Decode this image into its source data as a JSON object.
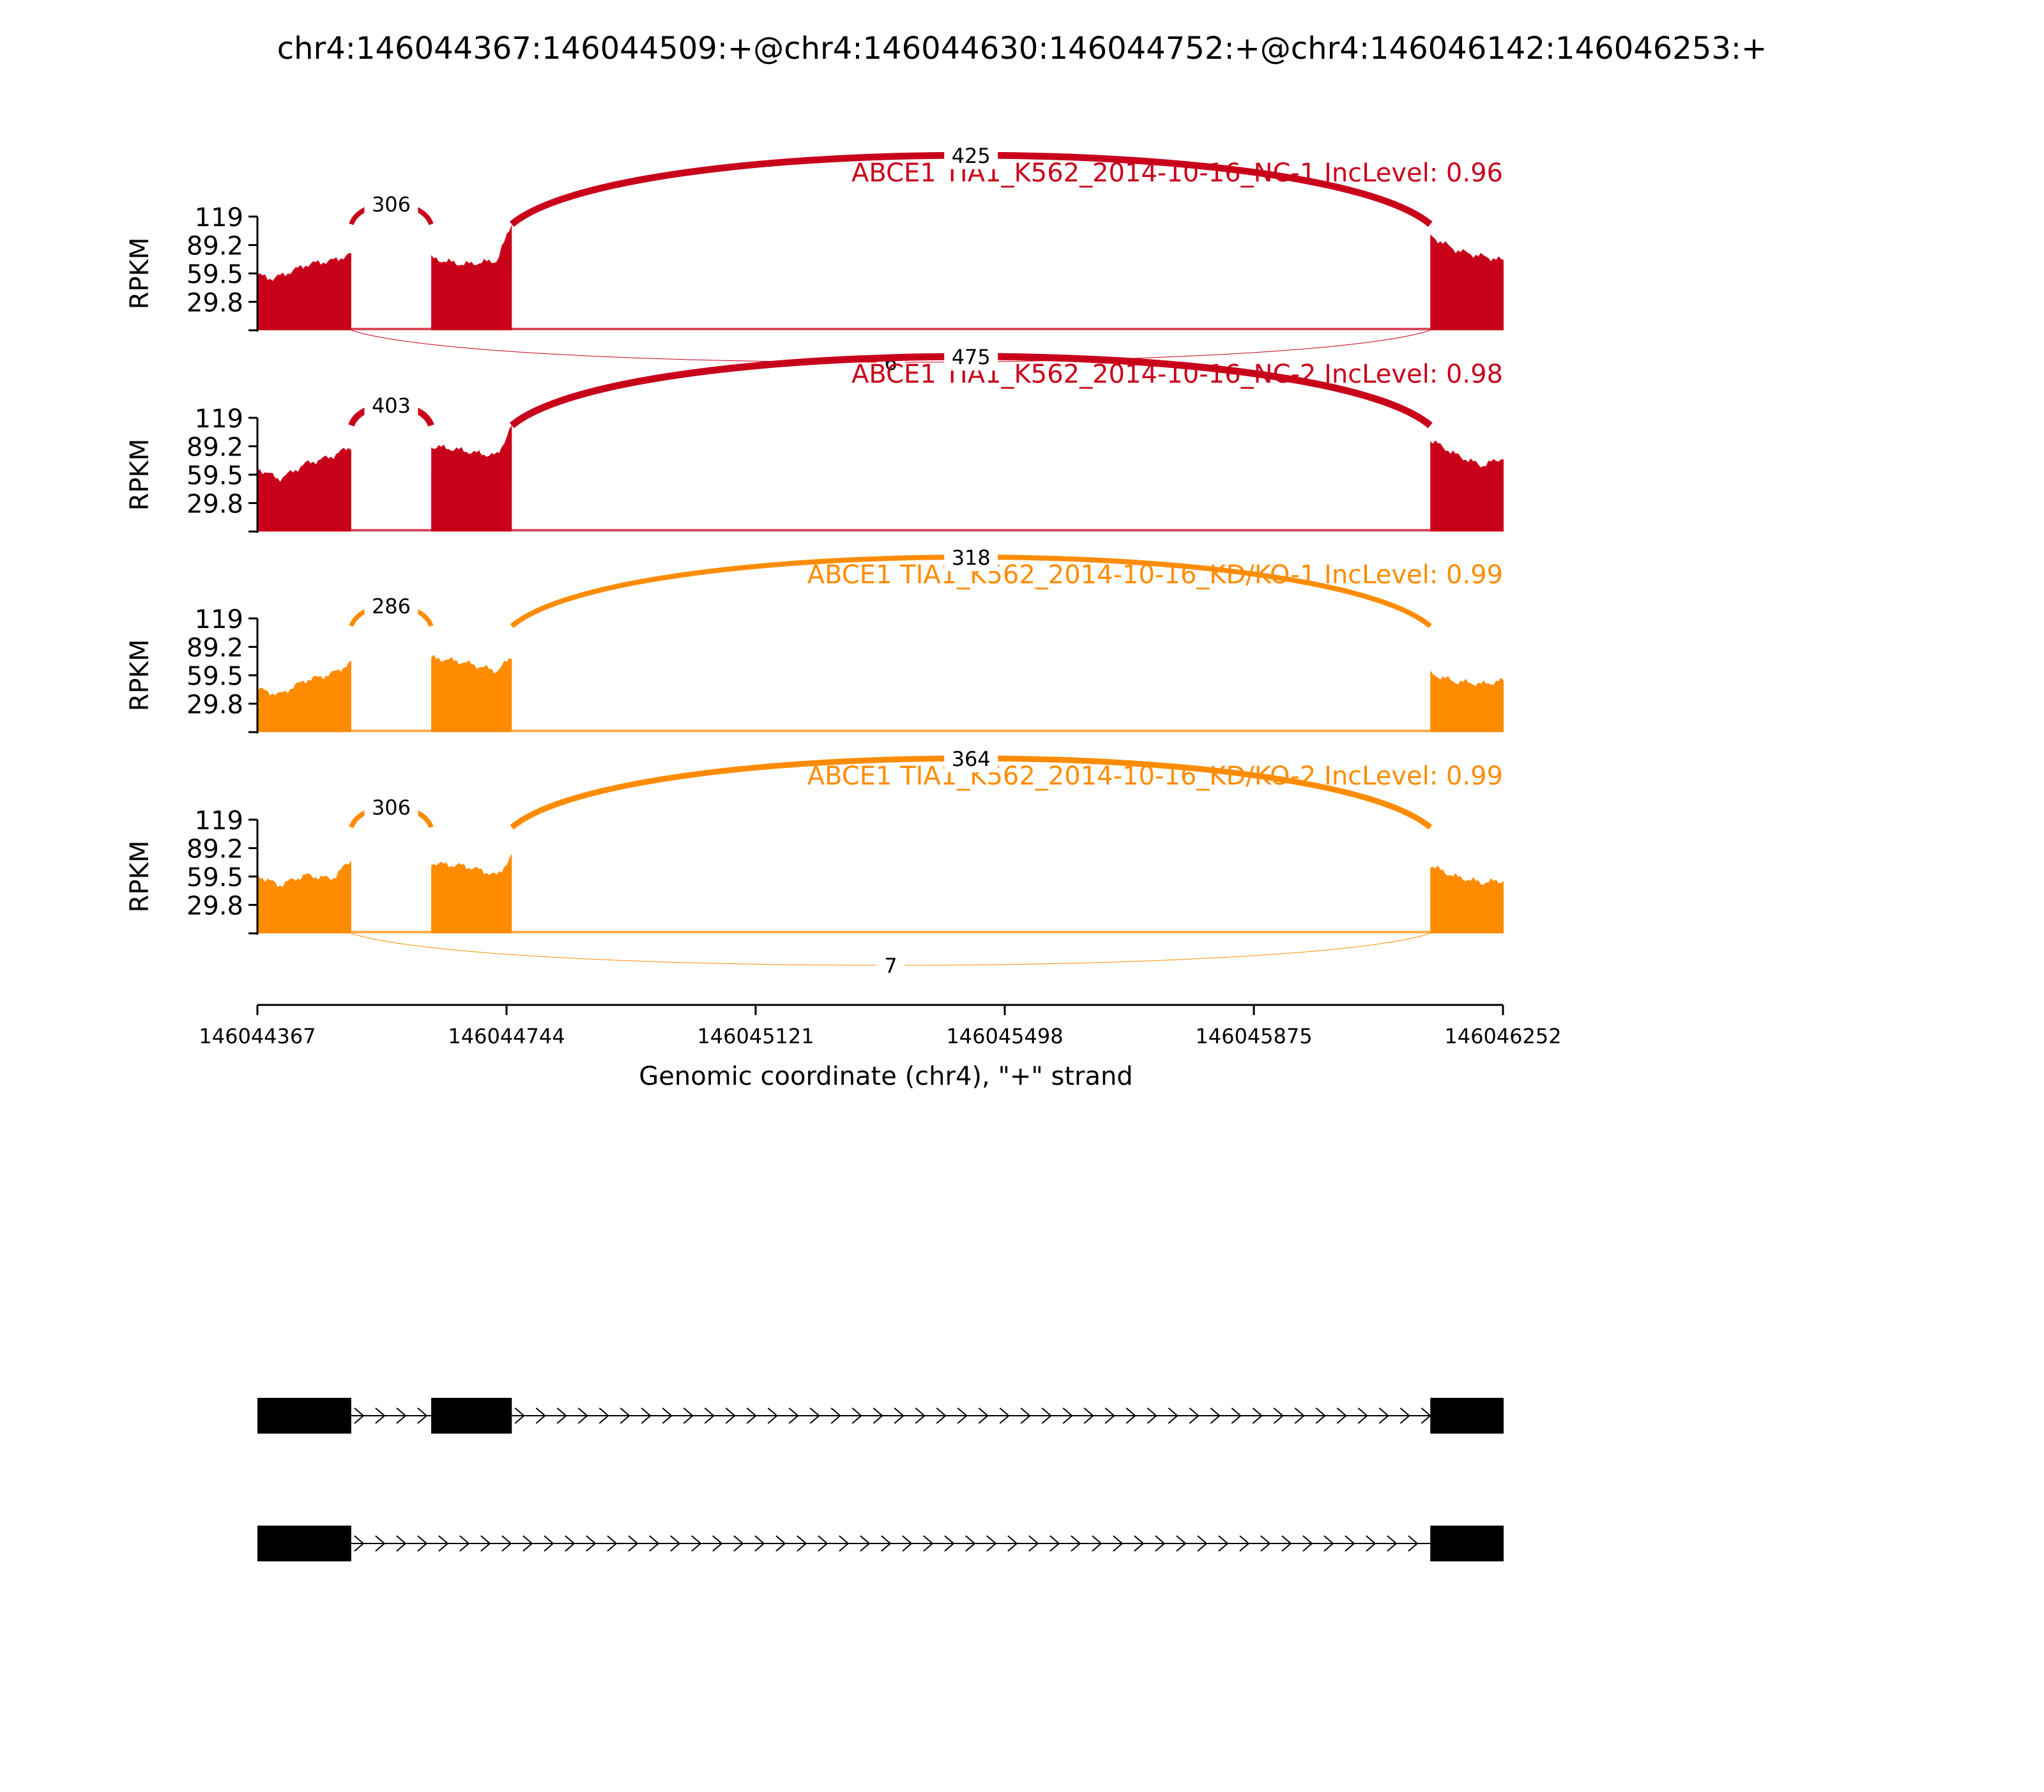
{
  "chart_data": {
    "type": "area",
    "title": "chr4:146044367:146044509:+@chr4:146044630:146044752:+@chr4:146046142:146046253:+",
    "ylabel": "RPKM",
    "xlabel": "Genomic coordinate (chr4), \"+\" strand",
    "xlim": [
      146044367,
      146046252
    ],
    "xticks": [
      146044367,
      146044744,
      146045121,
      146045498,
      146045875,
      146046252
    ],
    "xtick_labels": [
      "146044367",
      "146044744",
      "146045121",
      "146045498",
      "146045875",
      "146046252"
    ],
    "ylim": [
      0,
      119
    ],
    "yticks": [
      29.8,
      59.5,
      89.2,
      119
    ],
    "ytick_labels": [
      "29.8",
      "59.5",
      "89.2",
      "119"
    ],
    "exons": [
      {
        "start": 146044367,
        "end": 146044509
      },
      {
        "start": 146044630,
        "end": 146044752
      },
      {
        "start": 146046142,
        "end": 146046253
      }
    ],
    "colors": {
      "NC": "#c8001a",
      "KD": "#ff8c00"
    },
    "samples": [
      {
        "label": "ABCE1 TIA1_K562_2014-10-16_NC-1 IncLevel: 0.96",
        "color": "#c8001a",
        "exon_coverage": [
          [
            [
              146044367,
              58
            ],
            [
              146044390,
              55
            ],
            [
              146044440,
              68
            ],
            [
              146044480,
              72
            ],
            [
              146044509,
              80
            ]
          ],
          [
            [
              146044630,
              75
            ],
            [
              146044680,
              70
            ],
            [
              146044730,
              72
            ],
            [
              146044752,
              112
            ]
          ],
          [
            [
              146046142,
              98
            ],
            [
              146046180,
              85
            ],
            [
              146046220,
              78
            ],
            [
              146046253,
              72
            ]
          ]
        ],
        "junctions": [
          {
            "from": 146044509,
            "to": 146044630,
            "count": "306",
            "side": "above"
          },
          {
            "from": 146044752,
            "to": 146046142,
            "count": "425",
            "side": "above"
          },
          {
            "from": 146044509,
            "to": 146046142,
            "count": "6",
            "side": "below"
          }
        ]
      },
      {
        "label": "ABCE1 TIA1_K562_2014-10-16_NC-2 IncLevel: 0.98",
        "color": "#c8001a",
        "exon_coverage": [
          [
            [
              146044367,
              65
            ],
            [
              146044400,
              55
            ],
            [
              146044440,
              72
            ],
            [
              146044480,
              78
            ],
            [
              146044509,
              88
            ]
          ],
          [
            [
              146044630,
              88
            ],
            [
              146044680,
              85
            ],
            [
              146044730,
              80
            ],
            [
              146044752,
              110
            ]
          ],
          [
            [
              146046142,
              95
            ],
            [
              146046180,
              80
            ],
            [
              146046220,
              70
            ],
            [
              146046253,
              78
            ]
          ]
        ],
        "junctions": [
          {
            "from": 146044509,
            "to": 146044630,
            "count": "403",
            "side": "above"
          },
          {
            "from": 146044752,
            "to": 146046142,
            "count": "475",
            "side": "above"
          }
        ]
      },
      {
        "label": "ABCE1 TIA1_K562_2014-10-16_KD/KO-1 IncLevel: 0.99",
        "color": "#ff8c00",
        "exon_coverage": [
          [
            [
              146044367,
              45
            ],
            [
              146044400,
              38
            ],
            [
              146044440,
              55
            ],
            [
              146044480,
              62
            ],
            [
              146044509,
              72
            ]
          ],
          [
            [
              146044630,
              78
            ],
            [
              146044680,
              72
            ],
            [
              146044730,
              65
            ],
            [
              146044752,
              80
            ]
          ],
          [
            [
              146046142,
              62
            ],
            [
              146046180,
              52
            ],
            [
              146046220,
              50
            ],
            [
              146046253,
              55
            ]
          ]
        ],
        "junctions": [
          {
            "from": 146044509,
            "to": 146044630,
            "count": "286",
            "side": "above"
          },
          {
            "from": 146044752,
            "to": 146046142,
            "count": "318",
            "side": "above"
          }
        ]
      },
      {
        "label": "ABCE1 TIA1_K562_2014-10-16_KD/KO-2 IncLevel: 0.99",
        "color": "#ff8c00",
        "exon_coverage": [
          [
            [
              146044367,
              62
            ],
            [
              146044400,
              50
            ],
            [
              146044440,
              60
            ],
            [
              146044480,
              58
            ],
            [
              146044509,
              78
            ]
          ],
          [
            [
              146044630,
              75
            ],
            [
              146044680,
              70
            ],
            [
              146044730,
              60
            ],
            [
              146044752,
              82
            ]
          ],
          [
            [
              146046142,
              72
            ],
            [
              146046180,
              60
            ],
            [
              146046220,
              52
            ],
            [
              146046253,
              55
            ]
          ]
        ],
        "junctions": [
          {
            "from": 146044509,
            "to": 146044630,
            "count": "306",
            "side": "above"
          },
          {
            "from": 146044752,
            "to": 146046142,
            "count": "364",
            "side": "above"
          },
          {
            "from": 146044509,
            "to": 146046142,
            "count": "7",
            "side": "below"
          }
        ]
      }
    ],
    "isoforms": [
      {
        "exons": [
          [
            146044367,
            146044509
          ],
          [
            146044630,
            146044752
          ],
          [
            146046142,
            146046253
          ]
        ]
      },
      {
        "exons": [
          [
            146044367,
            146044509
          ],
          [
            146046142,
            146046253
          ]
        ]
      }
    ]
  }
}
